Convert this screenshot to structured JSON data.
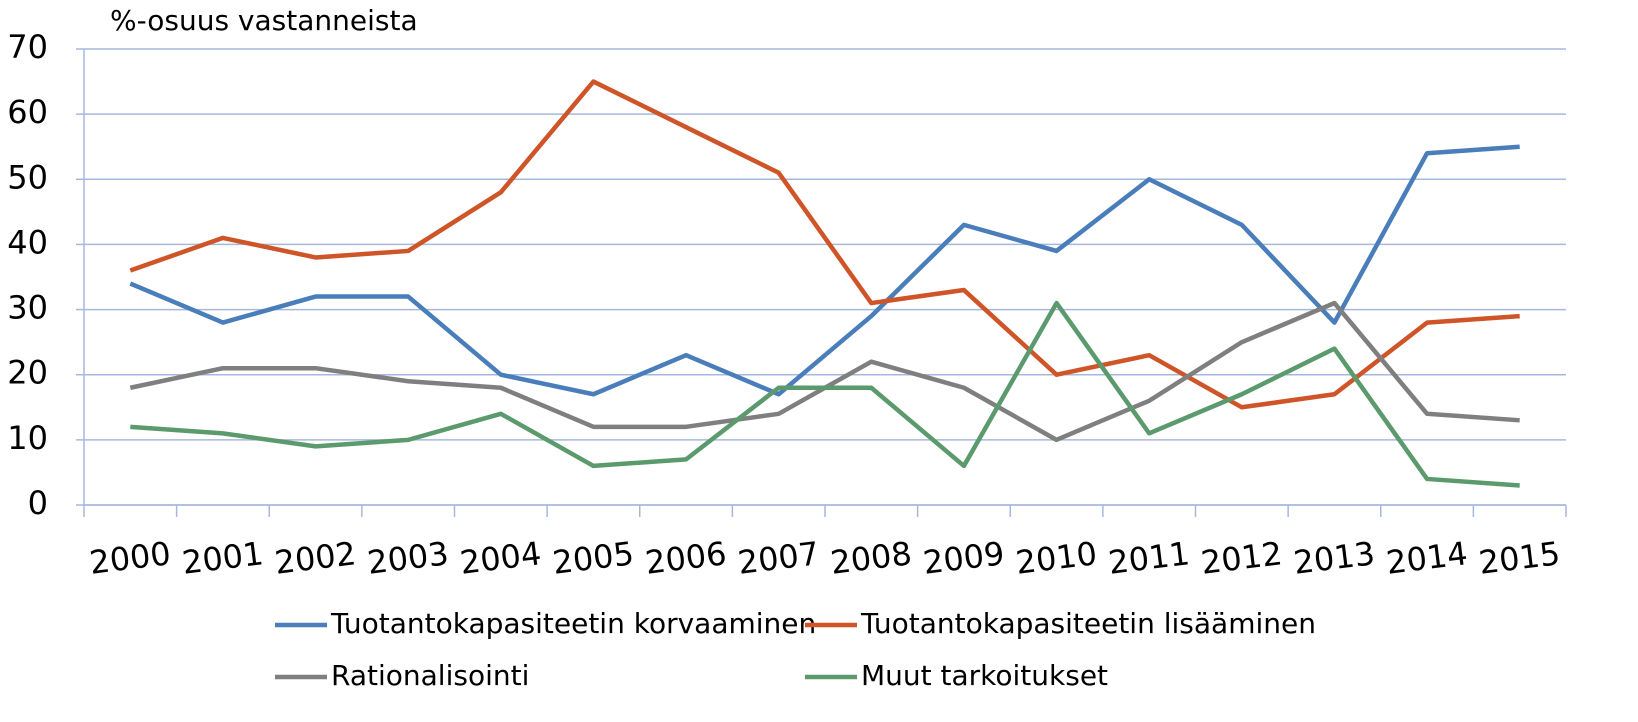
{
  "chart_data": {
    "type": "line",
    "y_axis_label": "%-osuus vastanneista",
    "categories": [
      "2000",
      "2001",
      "2002",
      "2003",
      "2004",
      "2005",
      "2006",
      "2007",
      "2008",
      "2009",
      "2010",
      "2011",
      "2012",
      "2013",
      "2014",
      "2015"
    ],
    "series": [
      {
        "name": "Tuotantokapasiteetin korvaaminen",
        "color": "#4a7ebb",
        "values": [
          34,
          28,
          32,
          32,
          20,
          17,
          23,
          17,
          29,
          43,
          39,
          50,
          43,
          28,
          54,
          55
        ]
      },
      {
        "name": "Tuotantokapasiteetin lisääminen",
        "color": "#cf5428",
        "values": [
          36,
          41,
          38,
          39,
          48,
          65,
          58,
          51,
          31,
          33,
          20,
          23,
          15,
          17,
          28,
          29
        ]
      },
      {
        "name": "Rationalisointi",
        "color": "#7f7f7f",
        "values": [
          18,
          21,
          21,
          19,
          18,
          12,
          12,
          14,
          22,
          18,
          10,
          16,
          25,
          31,
          14,
          13
        ]
      },
      {
        "name": "Muut tarkoitukset",
        "color": "#5b9a6d",
        "values": [
          12,
          11,
          9,
          10,
          14,
          6,
          7,
          18,
          18,
          6,
          31,
          11,
          17,
          24,
          4,
          3
        ]
      }
    ],
    "ylim": [
      0,
      70
    ],
    "yticks": [
      0,
      10,
      20,
      30,
      40,
      50,
      60,
      70
    ],
    "grid": true
  }
}
